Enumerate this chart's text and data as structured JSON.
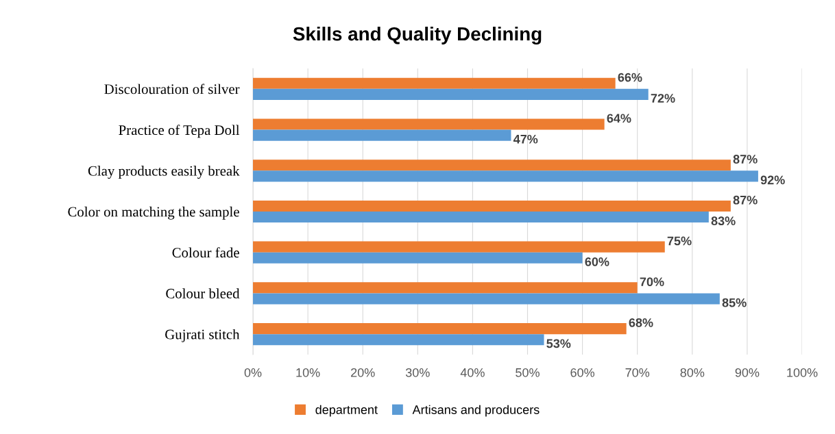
{
  "chart_data": {
    "type": "bar",
    "orientation": "horizontal",
    "title": "Skills and Quality Declining",
    "categories": [
      "Discolouration of silver",
      "Practice of Tepa Doll",
      "Clay products easily break",
      "Color on matching the sample",
      "Colour fade",
      "Colour bleed",
      "Gujrati stitch"
    ],
    "series": [
      {
        "name": "department",
        "color": "#ed7d31",
        "values": [
          66,
          64,
          87,
          87,
          75,
          70,
          68
        ],
        "value_labels": [
          "66%",
          "64%",
          "87%",
          "87%",
          "75%",
          "70%",
          "68%"
        ]
      },
      {
        "name": "Artisans and producers",
        "color": "#5b9bd5",
        "values": [
          72,
          47,
          92,
          83,
          60,
          85,
          53
        ],
        "value_labels": [
          "72%",
          "47%",
          "92%",
          "83%",
          "60%",
          "85%",
          "53%"
        ]
      }
    ],
    "xlim": [
      0,
      100
    ],
    "xticks": [
      {
        "value": 0,
        "label": "0%"
      },
      {
        "value": 10,
        "label": "10%"
      },
      {
        "value": 20,
        "label": "20%"
      },
      {
        "value": 30,
        "label": "30%"
      },
      {
        "value": 40,
        "label": "40%"
      },
      {
        "value": 50,
        "label": "50%"
      },
      {
        "value": 60,
        "label": "60%"
      },
      {
        "value": 70,
        "label": "70%"
      },
      {
        "value": 80,
        "label": "80%"
      },
      {
        "value": 90,
        "label": "90%"
      },
      {
        "value": 100,
        "label": "100%"
      }
    ],
    "grid": "x",
    "legend": "bottom"
  }
}
